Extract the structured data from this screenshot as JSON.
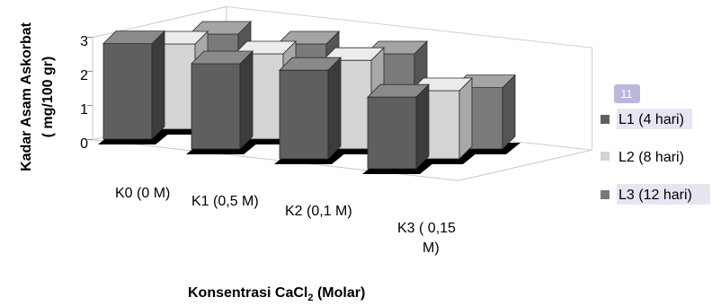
{
  "chart_data": {
    "type": "bar",
    "categories": [
      "K0 (0 M)",
      "K1 (0,5 M)",
      "K2 (0,1 M)",
      "K3 ( 0,15"
    ],
    "category_continuation": [
      "",
      "",
      "",
      "M)"
    ],
    "series": [
      {
        "name": "L1 (4 hari)",
        "values": [
          2.8,
          2.5,
          2.6,
          2.1
        ]
      },
      {
        "name": "L2 (8 hari)",
        "values": [
          2.5,
          2.5,
          2.6,
          2.0
        ]
      },
      {
        "name": "L3 (12 hari)",
        "values": [
          2.5,
          2.5,
          2.5,
          1.8
        ]
      }
    ],
    "ylim": [
      0,
      3
    ],
    "yticks": [
      "0",
      "1",
      "2",
      "3"
    ],
    "ylabel_line1": "Kadar Asam Askorbat",
    "ylabel_line2": "( mg/100 gr)",
    "xlabel_main": "Konsentrasi CaCl",
    "xlabel_sub": "2",
    "xlabel_tail": " (Molar)",
    "legend_badge": "11",
    "legend_position": "right",
    "grid": false,
    "colors": {
      "L1": {
        "front": "#5f5f5f",
        "side": "#3c3c3c",
        "top": "#8a8a8a"
      },
      "L2": {
        "front": "#d4d4d4",
        "side": "#a8a8a8",
        "top": "#ececec"
      },
      "L3": {
        "front": "#7a7a7a",
        "side": "#555555",
        "top": "#a4a4a4"
      },
      "shadow": "#000000",
      "badge": "#b8b8dc",
      "legend_highlight": "#e6e6f2"
    }
  }
}
